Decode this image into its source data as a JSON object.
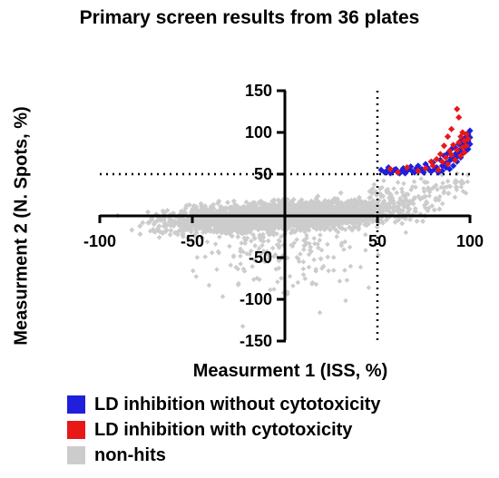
{
  "chart_data": {
    "type": "scatter",
    "title": "Primary screen results from 36 plates",
    "xlabel": "Measurment 1 (ISS, %)",
    "ylabel": "Measurment 2 (N. Spots, %)",
    "xlim": [
      -100,
      100
    ],
    "ylim": [
      -150,
      150
    ],
    "x_ticks": [
      "-100",
      "-50",
      "50",
      "100"
    ],
    "y_ticks": [
      "150",
      "100",
      "50",
      "-50",
      "-100",
      "-150"
    ],
    "thresholds": {
      "x": 50,
      "y": 50
    },
    "grid": false,
    "legend_position": "bottom-left",
    "series": [
      {
        "name": "LD inhibition without cytotoxicity",
        "color": "#1f1fdc",
        "points": [
          [
            52,
            55
          ],
          [
            54,
            52
          ],
          [
            56,
            58
          ],
          [
            58,
            53
          ],
          [
            60,
            56
          ],
          [
            62,
            51
          ],
          [
            64,
            57
          ],
          [
            66,
            54
          ],
          [
            68,
            59
          ],
          [
            70,
            52
          ],
          [
            72,
            60
          ],
          [
            74,
            56
          ],
          [
            76,
            62
          ],
          [
            78,
            55
          ],
          [
            80,
            64
          ],
          [
            82,
            58
          ],
          [
            84,
            67
          ],
          [
            85,
            60
          ],
          [
            86,
            72
          ],
          [
            87,
            63
          ],
          [
            88,
            75
          ],
          [
            89,
            66
          ],
          [
            90,
            80
          ],
          [
            90,
            70
          ],
          [
            91,
            68
          ],
          [
            92,
            82
          ],
          [
            92,
            74
          ],
          [
            93,
            71
          ],
          [
            94,
            86
          ],
          [
            94,
            77
          ],
          [
            95,
            90
          ],
          [
            95,
            80
          ],
          [
            96,
            84
          ],
          [
            96,
            75
          ],
          [
            97,
            93
          ],
          [
            97,
            88
          ],
          [
            98,
            95
          ],
          [
            98,
            85
          ],
          [
            99,
            98
          ],
          [
            99,
            90
          ],
          [
            100,
            102
          ],
          [
            100,
            94
          ],
          [
            100,
            86
          ],
          [
            99,
            80
          ],
          [
            98,
            78
          ],
          [
            97,
            83
          ],
          [
            96,
            92
          ],
          [
            95,
            70
          ],
          [
            93,
            65
          ],
          [
            91,
            60
          ],
          [
            89,
            56
          ],
          [
            87,
            58
          ],
          [
            85,
            54
          ],
          [
            83,
            52
          ],
          [
            81,
            56
          ],
          [
            79,
            53
          ],
          [
            77,
            58
          ],
          [
            75,
            52
          ],
          [
            73,
            55
          ],
          [
            71,
            57
          ],
          [
            69,
            53
          ],
          [
            67,
            56
          ],
          [
            65,
            51
          ],
          [
            63,
            54
          ],
          [
            61,
            52
          ],
          [
            59,
            55
          ],
          [
            57,
            51
          ],
          [
            55,
            54
          ]
        ]
      },
      {
        "name": "LD inhibition with cytotoxicity",
        "color": "#e81818",
        "points": [
          [
            57,
            56
          ],
          [
            61,
            52
          ],
          [
            66,
            58
          ],
          [
            72,
            54
          ],
          [
            76,
            57
          ],
          [
            80,
            60
          ],
          [
            83,
            55
          ],
          [
            85,
            65
          ],
          [
            87,
            70
          ],
          [
            88,
            62
          ],
          [
            89,
            78
          ],
          [
            90,
            73
          ],
          [
            91,
            85
          ],
          [
            92,
            67
          ],
          [
            93,
            79
          ],
          [
            94,
            88
          ],
          [
            95,
            72
          ],
          [
            95,
            95
          ],
          [
            96,
            82
          ],
          [
            96,
            100
          ],
          [
            97,
            76
          ],
          [
            97,
            90
          ],
          [
            98,
            84
          ],
          [
            98,
            98
          ],
          [
            99,
            92
          ],
          [
            93,
            128
          ],
          [
            94,
            118
          ],
          [
            88,
            95
          ],
          [
            90,
            104
          ],
          [
            86,
            84
          ],
          [
            84,
            74
          ],
          [
            82,
            68
          ],
          [
            79,
            65
          ]
        ]
      },
      {
        "name": "non-hits",
        "color": "#cccccc",
        "points": []
      }
    ]
  }
}
